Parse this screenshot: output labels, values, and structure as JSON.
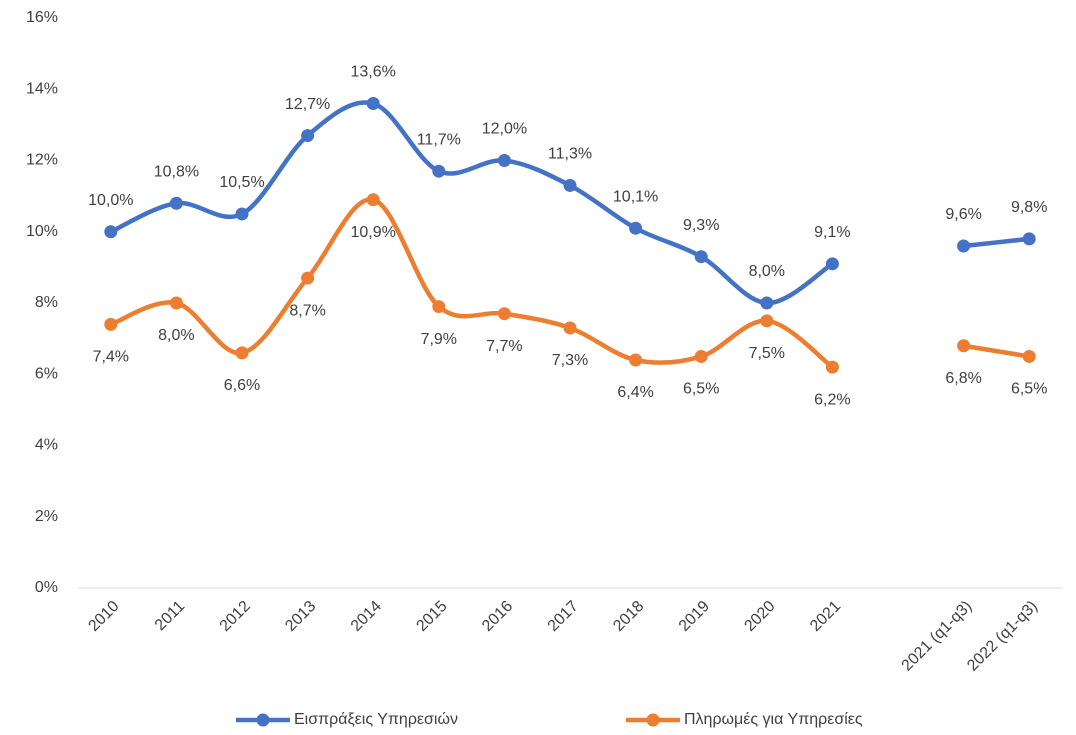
{
  "chart_data": {
    "type": "line",
    "categories": [
      "2010",
      "2011",
      "2012",
      "2013",
      "2014",
      "2015",
      "2016",
      "2017",
      "2018",
      "2019",
      "2020",
      "2021",
      null,
      "2021 (q1-q3)",
      "2022 (q1-q3)"
    ],
    "series": [
      {
        "name": "Εισπράξεις Υπηρεσιών",
        "color": "#4472c4",
        "values": [
          10.0,
          10.8,
          10.5,
          12.7,
          13.6,
          11.7,
          12.0,
          11.3,
          10.1,
          9.3,
          8.0,
          9.1,
          null,
          9.6,
          9.8
        ],
        "value_labels": [
          "10,0%",
          "10,8%",
          "10,5%",
          "12,7%",
          "13,6%",
          "11,7%",
          "12,0%",
          "11,3%",
          "10,1%",
          "9,3%",
          "8,0%",
          "9,1%",
          null,
          "9,6%",
          "9,8%"
        ]
      },
      {
        "name": "Πληρωμές για Υπηρεσίες",
        "color": "#ed7d31",
        "values": [
          7.4,
          8.0,
          6.6,
          8.7,
          10.9,
          7.9,
          7.7,
          7.3,
          6.4,
          6.5,
          7.5,
          6.2,
          null,
          6.8,
          6.5
        ],
        "value_labels": [
          "7,4%",
          "8,0%",
          "6,6%",
          "8,7%",
          "10,9%",
          "7,9%",
          "7,7%",
          "7,3%",
          "6,4%",
          "6,5%",
          "7,5%",
          "6,2%",
          null,
          "6,8%",
          "6,5%"
        ]
      }
    ],
    "ylim": [
      0,
      16
    ],
    "yticks": [
      {
        "value": 0,
        "label": "0%"
      },
      {
        "value": 2,
        "label": "2%"
      },
      {
        "value": 4,
        "label": "4%"
      },
      {
        "value": 6,
        "label": "6%"
      },
      {
        "value": 8,
        "label": "8%"
      },
      {
        "value": 10,
        "label": "10%"
      },
      {
        "value": 12,
        "label": "12%"
      },
      {
        "value": 14,
        "label": "14%"
      },
      {
        "value": 16,
        "label": "16%"
      }
    ],
    "grid": false,
    "legend": "bottom"
  }
}
